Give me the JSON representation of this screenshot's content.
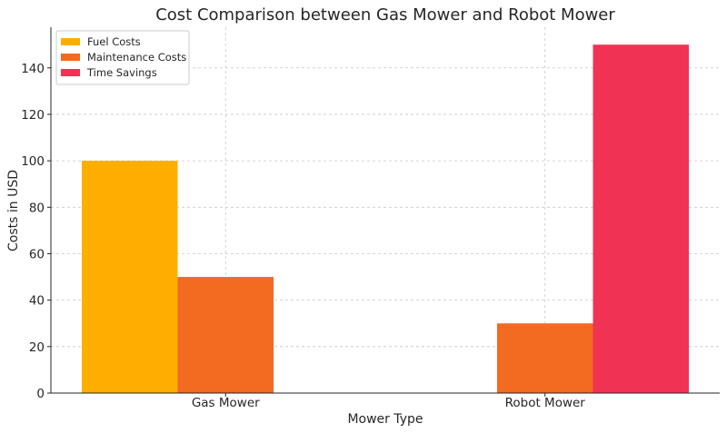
{
  "chart_data": {
    "type": "bar",
    "title": "Cost Comparison between Gas Mower and Robot Mower",
    "xlabel": "Mower Type",
    "ylabel": "Costs in USD",
    "categories": [
      "Gas Mower",
      "Robot Mower"
    ],
    "series": [
      {
        "name": "Fuel Costs",
        "values": [
          100,
          0
        ],
        "color": "#FFAE00"
      },
      {
        "name": "Maintenance Costs",
        "values": [
          50,
          30
        ],
        "color": "#F26B21"
      },
      {
        "name": "Time Savings",
        "values": [
          0,
          150
        ],
        "color": "#F03254"
      }
    ],
    "ylim": [
      0,
      157.5
    ],
    "yticks": [
      0,
      20,
      40,
      60,
      80,
      100,
      120,
      140
    ],
    "grid": true,
    "legend_position": "top-left"
  }
}
